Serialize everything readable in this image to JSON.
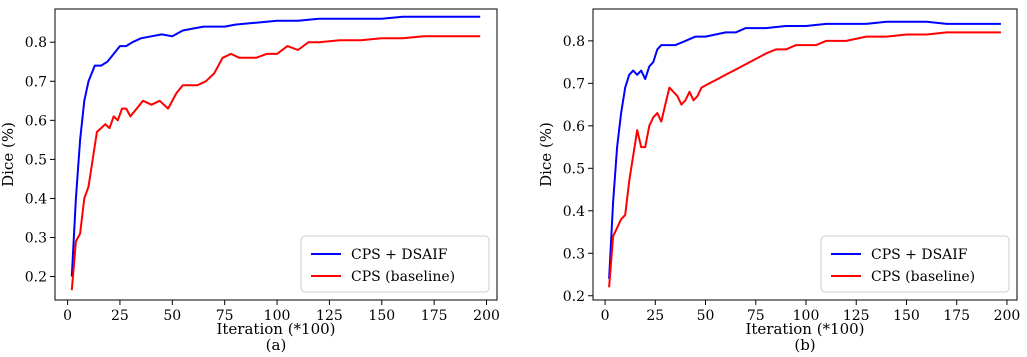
{
  "chart_data": [
    {
      "type": "line",
      "caption": "(a)",
      "xlabel": "Iteration (*100)",
      "ylabel": "Dice (%)",
      "xlim": [
        -6,
        205
      ],
      "ylim": [
        0.14,
        0.885
      ],
      "xticks": [
        0,
        25,
        50,
        75,
        100,
        125,
        150,
        175,
        200
      ],
      "yticks": [
        0.2,
        0.3,
        0.4,
        0.5,
        0.6,
        0.7,
        0.8
      ],
      "legend_position": "lower-right",
      "series": [
        {
          "name": "CPS + DSAIF",
          "color": "#0000ff",
          "x": [
            2,
            4,
            6,
            8,
            10,
            13,
            16,
            19,
            22,
            25,
            28,
            31,
            35,
            40,
            45,
            50,
            55,
            60,
            65,
            70,
            75,
            80,
            90,
            100,
            110,
            120,
            130,
            140,
            150,
            160,
            170,
            180,
            190,
            197
          ],
          "y": [
            0.2,
            0.4,
            0.55,
            0.65,
            0.7,
            0.74,
            0.74,
            0.75,
            0.77,
            0.79,
            0.79,
            0.8,
            0.81,
            0.815,
            0.82,
            0.815,
            0.83,
            0.835,
            0.84,
            0.84,
            0.84,
            0.845,
            0.85,
            0.855,
            0.855,
            0.86,
            0.86,
            0.86,
            0.86,
            0.865,
            0.865,
            0.865,
            0.865,
            0.865
          ]
        },
        {
          "name": "CPS (baseline)",
          "color": "#ff0000",
          "x": [
            2,
            4,
            6,
            8,
            10,
            12,
            14,
            16,
            18,
            20,
            22,
            24,
            26,
            28,
            30,
            33,
            36,
            40,
            44,
            48,
            52,
            55,
            58,
            62,
            66,
            70,
            74,
            78,
            82,
            86,
            90,
            95,
            100,
            105,
            110,
            115,
            120,
            130,
            140,
            150,
            160,
            170,
            180,
            190,
            197
          ],
          "y": [
            0.165,
            0.29,
            0.31,
            0.4,
            0.43,
            0.5,
            0.57,
            0.58,
            0.59,
            0.58,
            0.61,
            0.6,
            0.63,
            0.63,
            0.61,
            0.63,
            0.65,
            0.64,
            0.65,
            0.63,
            0.67,
            0.69,
            0.69,
            0.69,
            0.7,
            0.72,
            0.76,
            0.77,
            0.76,
            0.76,
            0.76,
            0.77,
            0.77,
            0.79,
            0.78,
            0.8,
            0.8,
            0.805,
            0.805,
            0.81,
            0.81,
            0.815,
            0.815,
            0.815,
            0.815
          ]
        }
      ]
    },
    {
      "type": "line",
      "caption": "(b)",
      "xlabel": "Iteration (*100)",
      "ylabel": "Dice (%)",
      "xlim": [
        -6,
        205
      ],
      "ylim": [
        0.19,
        0.875
      ],
      "xticks": [
        0,
        25,
        50,
        75,
        100,
        125,
        150,
        175,
        200
      ],
      "yticks": [
        0.2,
        0.3,
        0.4,
        0.5,
        0.6,
        0.7,
        0.8
      ],
      "legend_position": "lower-right",
      "series": [
        {
          "name": "CPS + DSAIF",
          "color": "#0000ff",
          "x": [
            2,
            4,
            6,
            8,
            10,
            12,
            14,
            16,
            18,
            20,
            22,
            24,
            26,
            28,
            30,
            35,
            40,
            45,
            50,
            55,
            60,
            65,
            70,
            75,
            80,
            90,
            100,
            110,
            120,
            130,
            140,
            150,
            160,
            170,
            180,
            190,
            197
          ],
          "y": [
            0.24,
            0.42,
            0.55,
            0.63,
            0.69,
            0.72,
            0.73,
            0.72,
            0.73,
            0.71,
            0.74,
            0.75,
            0.78,
            0.79,
            0.79,
            0.79,
            0.8,
            0.81,
            0.81,
            0.815,
            0.82,
            0.82,
            0.83,
            0.83,
            0.83,
            0.835,
            0.835,
            0.84,
            0.84,
            0.84,
            0.845,
            0.845,
            0.845,
            0.84,
            0.84,
            0.84,
            0.84
          ]
        },
        {
          "name": "CPS (baseline)",
          "color": "#ff0000",
          "x": [
            2,
            4,
            6,
            8,
            10,
            12,
            14,
            16,
            18,
            20,
            22,
            24,
            26,
            28,
            30,
            32,
            34,
            36,
            38,
            40,
            42,
            44,
            46,
            48,
            52,
            56,
            60,
            64,
            68,
            72,
            76,
            80,
            85,
            90,
            95,
            100,
            105,
            110,
            115,
            120,
            130,
            140,
            150,
            160,
            170,
            180,
            190,
            197
          ],
          "y": [
            0.22,
            0.34,
            0.36,
            0.38,
            0.39,
            0.47,
            0.53,
            0.59,
            0.55,
            0.55,
            0.6,
            0.62,
            0.63,
            0.61,
            0.65,
            0.69,
            0.68,
            0.67,
            0.65,
            0.66,
            0.68,
            0.66,
            0.67,
            0.69,
            0.7,
            0.71,
            0.72,
            0.73,
            0.74,
            0.75,
            0.76,
            0.77,
            0.78,
            0.78,
            0.79,
            0.79,
            0.79,
            0.8,
            0.8,
            0.8,
            0.81,
            0.81,
            0.815,
            0.815,
            0.82,
            0.82,
            0.82,
            0.82
          ]
        }
      ]
    }
  ]
}
